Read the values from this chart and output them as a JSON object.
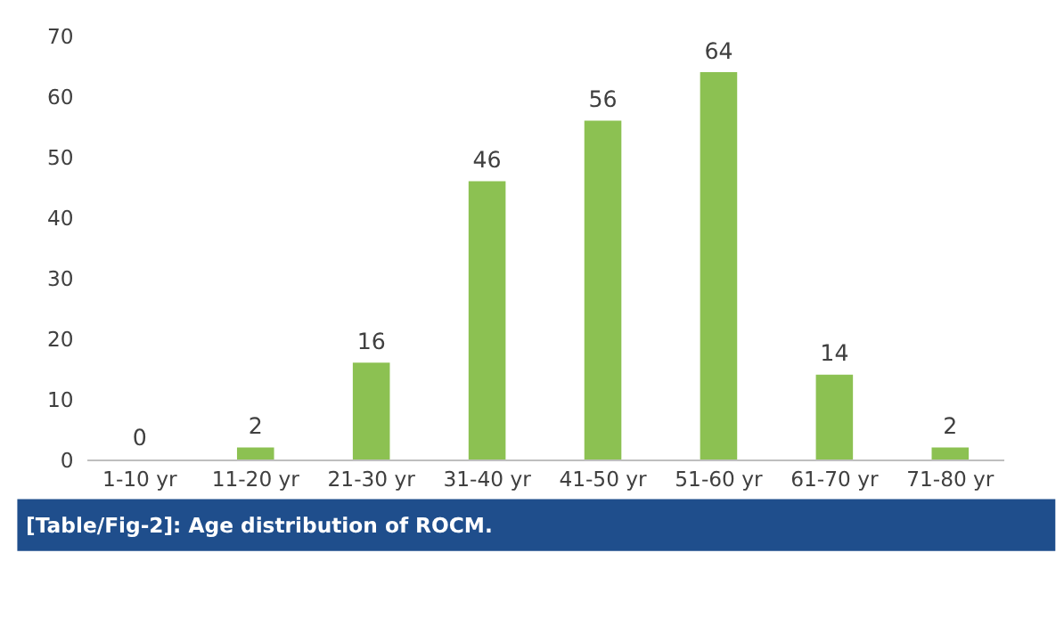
{
  "chart_data": {
    "type": "bar",
    "categories": [
      "1-10 yr",
      "11-20 yr",
      "21-30 yr",
      "31-40 yr",
      "41-50 yr",
      "51-60 yr",
      "61-70 yr",
      "71-80 yr"
    ],
    "values": [
      0,
      2,
      16,
      46,
      56,
      64,
      14,
      2
    ],
    "color": "#8cc152",
    "ylim": [
      0,
      70
    ],
    "yticks": [
      0,
      10,
      20,
      30,
      40,
      50,
      60,
      70
    ],
    "grid": false,
    "data_labels": true,
    "annotations": [
      "[Table/Fig-2]: Age distribution of ROCM."
    ]
  }
}
